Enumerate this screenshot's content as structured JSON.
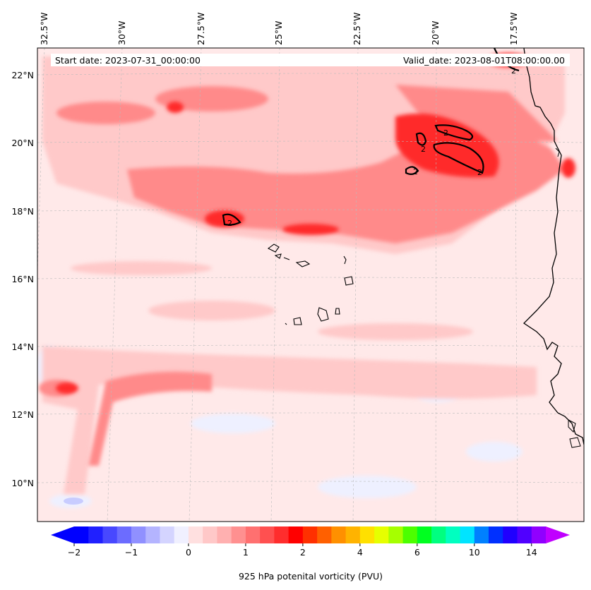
{
  "header": {
    "start_date": "Start date: 2023-07-31_00:00:00",
    "valid_date": "Valid_date: 2023-08-01T08:00:00.00"
  },
  "map": {
    "longitude_labels": [
      "32.5°W",
      "30°W",
      "27.5°W",
      "25°W",
      "22.5°W",
      "20°W",
      "17.5°W"
    ],
    "latitude_labels": [
      "22°N",
      "20°N",
      "18°N",
      "16°N",
      "14°N",
      "12°N",
      "10°N"
    ],
    "contour_level_label": "2",
    "field_description_colors": {
      "background_low": "#ffe9e9",
      "weak_negative": "#eef0ff",
      "pale_red": "#ffc9c9",
      "mid_red": "#ff8a8a",
      "strong_red": "#ff2a2a",
      "coastline": "#000000"
    }
  },
  "colorbar": {
    "title": "925 hPa potenital vorticity (PVU)",
    "tick_labels": [
      "−2",
      "−1",
      "0",
      "1",
      "2",
      "4",
      "6",
      "10",
      "14"
    ],
    "colors": [
      "#0000ff",
      "#2020ff",
      "#4848ff",
      "#6c6cff",
      "#9090ff",
      "#b4b4ff",
      "#d4d4ff",
      "#f0f0ff",
      "#ffe0e0",
      "#ffc8c8",
      "#ffb0b0",
      "#ff9090",
      "#ff7070",
      "#ff5050",
      "#ff2d2d",
      "#ff0000",
      "#ff3000",
      "#ff6000",
      "#ff9000",
      "#ffb300",
      "#ffe000",
      "#e6ff00",
      "#a6ff00",
      "#4cff00",
      "#00ff20",
      "#00ff80",
      "#00ffc0",
      "#00e4ff",
      "#0080ff",
      "#0030ff",
      "#2000ff",
      "#5000ff",
      "#9000ff"
    ],
    "extend_low_color": "#0000ff",
    "extend_high_color": "#c000ff"
  }
}
